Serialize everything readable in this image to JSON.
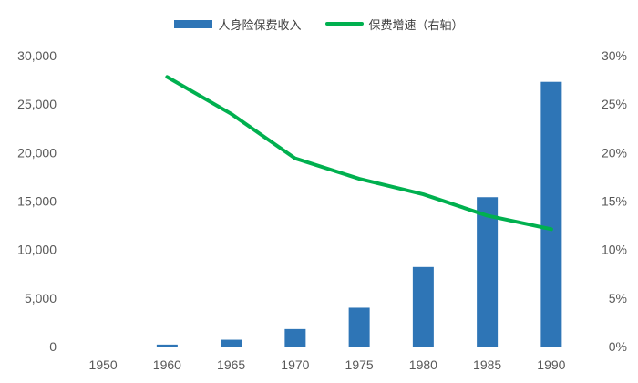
{
  "colors": {
    "bar": "#2E75B6",
    "line": "#00B04F",
    "axis": "#BFBFBF",
    "text": "#595959"
  },
  "legend": {
    "bar_label": "人身险保费收入",
    "line_label": "保费增速（右轴）"
  },
  "chart_data": {
    "type": "bar",
    "categories": [
      "1950",
      "1960",
      "1965",
      "1970",
      "1975",
      "1980",
      "1985",
      "1990"
    ],
    "series": [
      {
        "name": "人身险保费收入",
        "type": "bar",
        "axis": "left",
        "values": [
          0,
          200,
          700,
          1800,
          4000,
          8200,
          15400,
          27300
        ]
      },
      {
        "name": "保费增速（右轴）",
        "type": "line",
        "axis": "right",
        "values": [
          null,
          27.8,
          24.0,
          19.4,
          17.3,
          15.7,
          13.5,
          12.1
        ]
      }
    ],
    "left_axis": {
      "ylim": [
        0,
        30000
      ],
      "ticks": [
        0,
        5000,
        10000,
        15000,
        20000,
        25000,
        30000
      ],
      "tick_labels": [
        "0",
        "5,000",
        "10,000",
        "15,000",
        "20,000",
        "25,000",
        "30,000"
      ]
    },
    "right_axis": {
      "ylim": [
        0,
        30
      ],
      "ticks": [
        0,
        5,
        10,
        15,
        20,
        25,
        30
      ],
      "tick_labels": [
        "0%",
        "5%",
        "10%",
        "15%",
        "20%",
        "25%",
        "30%"
      ]
    },
    "grid": false,
    "legend_position": "top-center"
  }
}
